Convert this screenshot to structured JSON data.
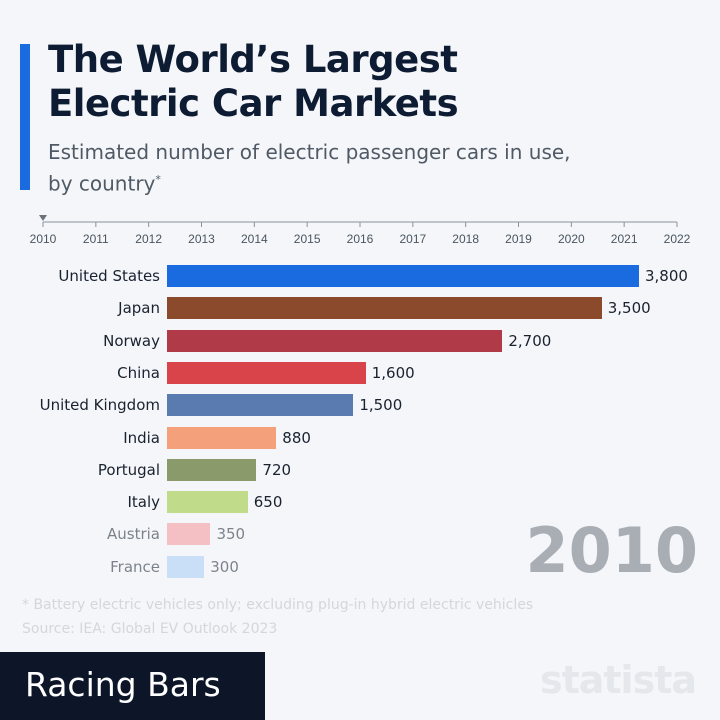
{
  "title_line1": "The World’s Largest",
  "title_line2": "Electric Car Markets",
  "subtitle_line1": "Estimated number of electric passenger cars in use,",
  "subtitle_line2": "by country",
  "subtitle_mark": "*",
  "current_year": "2010",
  "footnote": "* Battery electric vehicles only; excluding plug-in hybrid electric vehicles",
  "source": "Source: IEA: Global EV Outlook 2023",
  "badge": "Racing Bars",
  "logo": "statista",
  "chart_data": {
    "type": "bar",
    "orientation": "horizontal",
    "timeline": {
      "ticks": [
        "2010",
        "2011",
        "2012",
        "2013",
        "2014",
        "2015",
        "2016",
        "2017",
        "2018",
        "2019",
        "2020",
        "2021",
        "2022"
      ],
      "current": "2010"
    },
    "categories": [
      "United States",
      "Japan",
      "Norway",
      "China",
      "United Kingdom",
      "India",
      "Portugal",
      "Italy",
      "Austria",
      "France"
    ],
    "values": [
      3800,
      3500,
      2700,
      1600,
      1500,
      880,
      720,
      650,
      350,
      300
    ],
    "value_labels": [
      "3,800",
      "3,500",
      "2,700",
      "1,600",
      "1,500",
      "880",
      "720",
      "650",
      "350",
      "300"
    ],
    "colors": [
      "#1a6be0",
      "#8b4a2b",
      "#b03a48",
      "#d9444a",
      "#5a7bb0",
      "#f4a07a",
      "#8a9a6a",
      "#c0dc8a",
      "#f5c0c4",
      "#c8dff7"
    ],
    "faded": [
      false,
      false,
      false,
      false,
      false,
      false,
      false,
      false,
      true,
      true
    ],
    "xlim": [
      0,
      3800
    ]
  }
}
